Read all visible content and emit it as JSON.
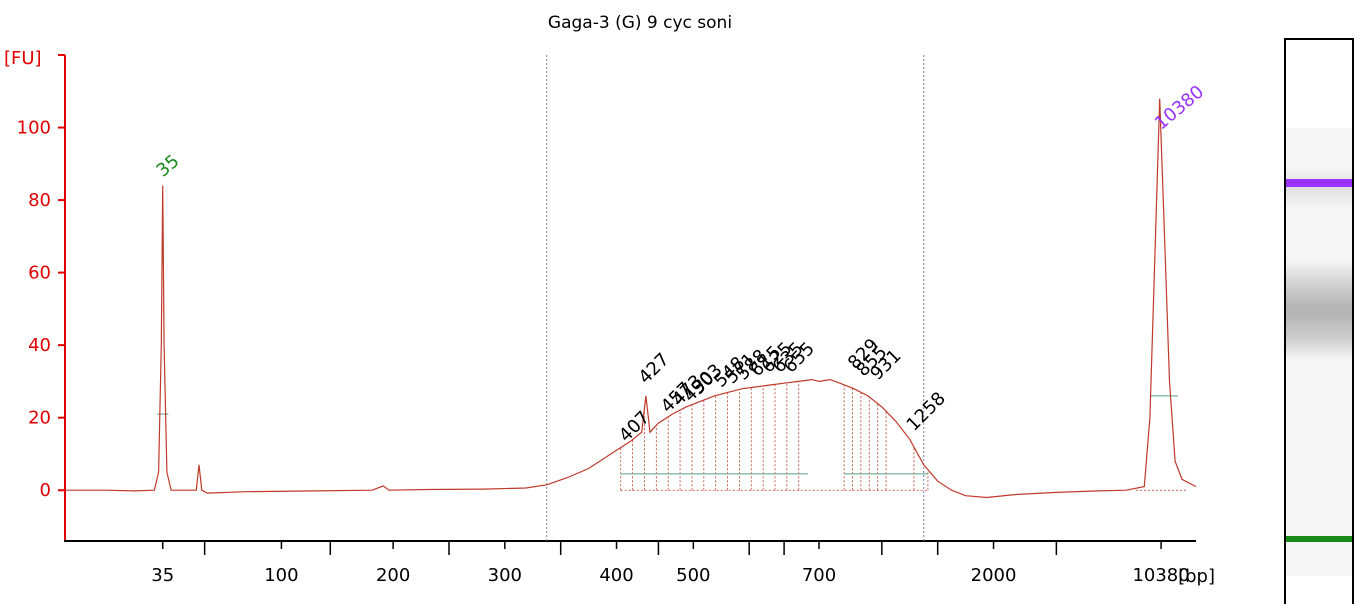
{
  "chart_data": {
    "type": "line",
    "title": "Gaga-3 (G) 9 cyc soni",
    "ylabel": "[FU]",
    "xlabel": "[bp]",
    "ylim": [
      -14,
      120
    ],
    "yticks": [
      "0",
      "20",
      "40",
      "60",
      "80",
      "100"
    ],
    "yticks_values": [
      0,
      20,
      40,
      60,
      80,
      100
    ],
    "xticks": [
      "35",
      "100",
      "200",
      "300",
      "400",
      "500",
      "700",
      "2000",
      "10380"
    ],
    "xlim_seconds": [
      32,
      113
    ],
    "xticks_pos": [
      39,
      47.5,
      55.5,
      63.5,
      71.5,
      77,
      86,
      98.5,
      110.5
    ],
    "xtick_minor_pos": [
      42,
      51,
      59.5,
      67.5,
      74.5,
      81,
      83.5,
      90.5,
      94.5,
      103
    ],
    "divider_lines_pos": [
      66.5,
      93.5
    ],
    "color_trace": "#c0392b",
    "color_axis": "#e00000",
    "markers": [
      {
        "label": "35",
        "x": 39,
        "color": "#1a8a1a"
      },
      {
        "label": "10380",
        "x": 110.5,
        "color": "#9933ff"
      }
    ],
    "peak_labels": [
      {
        "label": "407",
        "x": 72.2,
        "y": 12
      },
      {
        "label": "427",
        "x": 73.6,
        "y": 28
      },
      {
        "label": "457",
        "x": 75.2,
        "y": 20
      },
      {
        "label": "473",
        "x": 76.0,
        "y": 22
      },
      {
        "label": "490",
        "x": 76.8,
        "y": 23
      },
      {
        "label": "503",
        "x": 77.4,
        "y": 25
      },
      {
        "label": "548",
        "x": 79.0,
        "y": 27
      },
      {
        "label": "571",
        "x": 79.8,
        "y": 28
      },
      {
        "label": "588",
        "x": 80.6,
        "y": 29
      },
      {
        "label": "615",
        "x": 81.6,
        "y": 30
      },
      {
        "label": "625",
        "x": 82.4,
        "y": 31
      },
      {
        "label": "635",
        "x": 83.2,
        "y": 31
      },
      {
        "label": "655",
        "x": 84.0,
        "y": 31
      },
      {
        "label": "829",
        "x": 88.6,
        "y": 32
      },
      {
        "label": "855",
        "x": 89.2,
        "y": 30
      },
      {
        "label": "931",
        "x": 90.2,
        "y": 29
      },
      {
        "label": "1258",
        "x": 92.8,
        "y": 15
      }
    ],
    "trace": [
      [
        32,
        0
      ],
      [
        35,
        0
      ],
      [
        37,
        -0.2
      ],
      [
        38.4,
        0
      ],
      [
        38.7,
        5
      ],
      [
        38.9,
        40
      ],
      [
        39,
        84
      ],
      [
        39.1,
        40
      ],
      [
        39.3,
        5
      ],
      [
        39.6,
        0
      ],
      [
        40.8,
        0
      ],
      [
        41.4,
        0
      ],
      [
        41.6,
        7
      ],
      [
        41.8,
        0
      ],
      [
        42.2,
        -0.8
      ],
      [
        45,
        -0.4
      ],
      [
        50,
        -0.2
      ],
      [
        54,
        0
      ],
      [
        54.8,
        1.2
      ],
      [
        55.2,
        0
      ],
      [
        58,
        0.2
      ],
      [
        62,
        0.3
      ],
      [
        65,
        0.6
      ],
      [
        66.5,
        1.5
      ],
      [
        68,
        3.5
      ],
      [
        69.5,
        6
      ],
      [
        70.5,
        8.5
      ],
      [
        71.5,
        11
      ],
      [
        72.5,
        13.5
      ],
      [
        73.3,
        16
      ],
      [
        73.6,
        26
      ],
      [
        73.9,
        16
      ],
      [
        74.5,
        18.5
      ],
      [
        75.5,
        21
      ],
      [
        76.5,
        23
      ],
      [
        77.5,
        24.5
      ],
      [
        78.5,
        26
      ],
      [
        79.5,
        27
      ],
      [
        80.5,
        28
      ],
      [
        81.5,
        28.5
      ],
      [
        82.5,
        29
      ],
      [
        83.5,
        29.5
      ],
      [
        84.5,
        30
      ],
      [
        85.5,
        30.5
      ],
      [
        86,
        30
      ],
      [
        86.8,
        30.5
      ],
      [
        87.5,
        29.5
      ],
      [
        88.5,
        28
      ],
      [
        89.5,
        26
      ],
      [
        90.5,
        23
      ],
      [
        91.5,
        19
      ],
      [
        92.5,
        14
      ],
      [
        93.5,
        7
      ],
      [
        94.5,
        2.5
      ],
      [
        95.5,
        0
      ],
      [
        96.5,
        -1.5
      ],
      [
        98,
        -2
      ],
      [
        100,
        -1.2
      ],
      [
        103,
        -0.6
      ],
      [
        106,
        -0.2
      ],
      [
        108,
        0
      ],
      [
        109.3,
        1
      ],
      [
        109.7,
        20
      ],
      [
        110.1,
        70
      ],
      [
        110.4,
        108
      ],
      [
        110.7,
        75
      ],
      [
        111.1,
        30
      ],
      [
        111.5,
        8
      ],
      [
        112,
        3
      ],
      [
        113,
        1
      ],
      [
        114,
        0.5
      ],
      [
        115,
        0.3
      ],
      [
        117,
        0
      ],
      [
        118,
        1
      ],
      [
        118.3,
        6
      ],
      [
        118.6,
        1
      ],
      [
        120,
        0
      ],
      [
        125,
        0
      ],
      [
        130,
        0.2
      ]
    ]
  }
}
